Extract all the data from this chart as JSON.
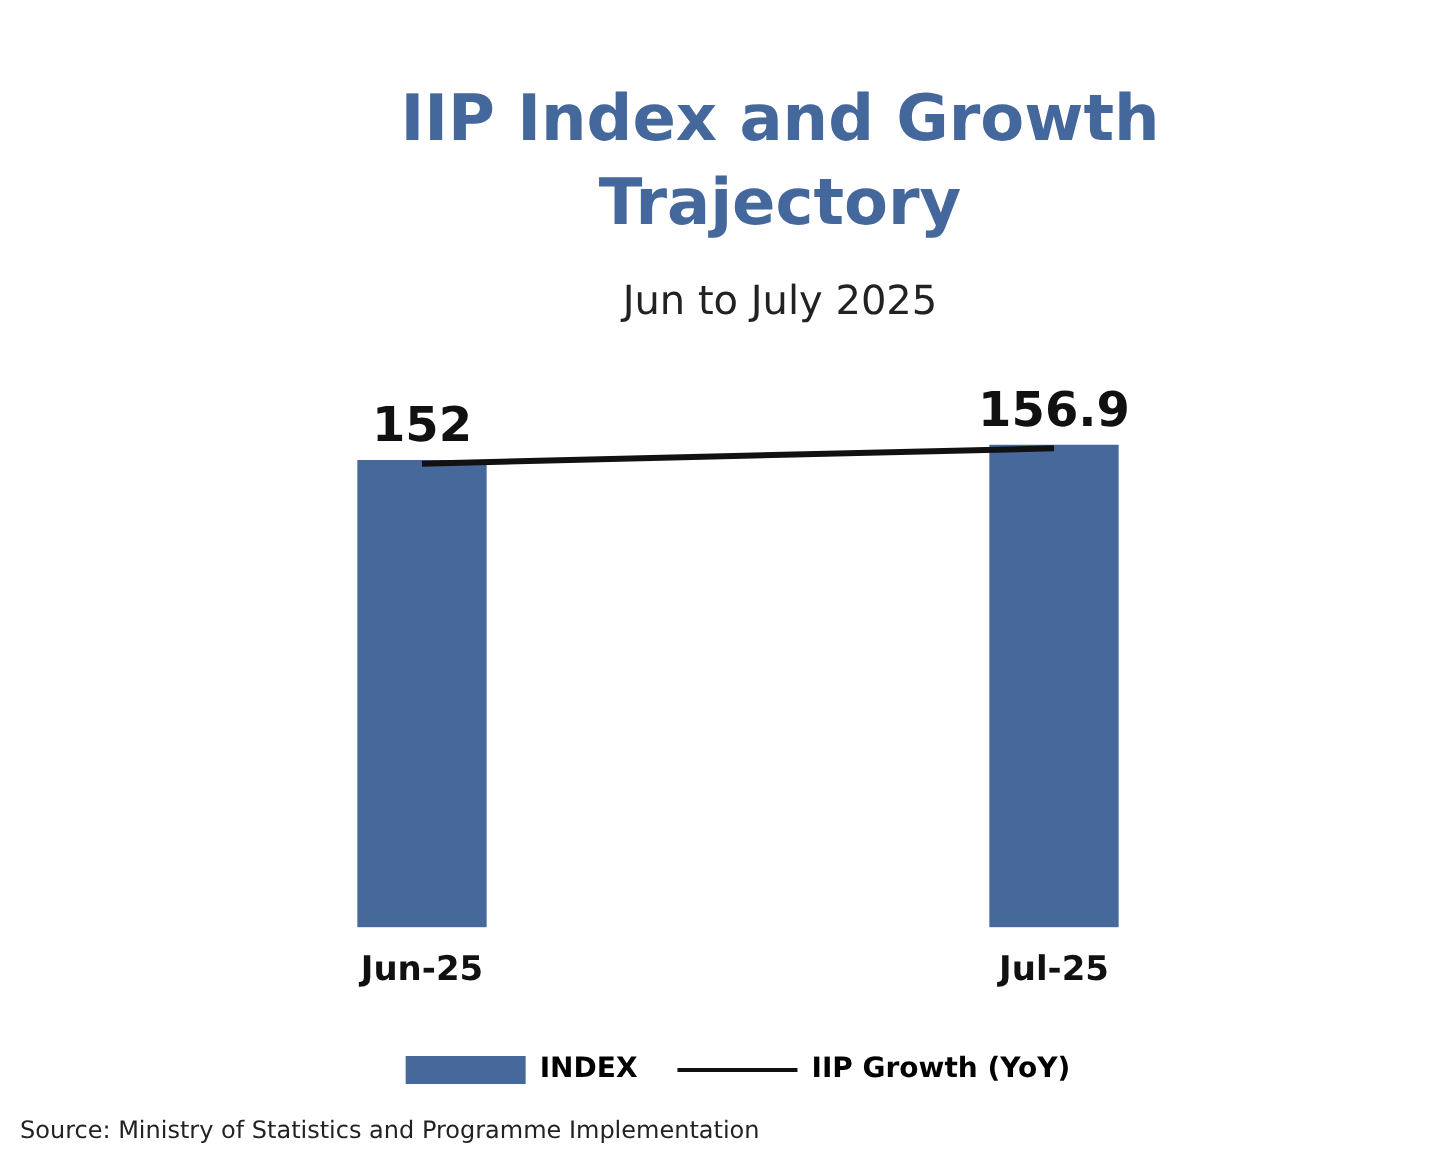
{
  "chart_data": {
    "type": "bar",
    "title": "IIP Index and Growth Trajectory",
    "subtitle": "Jun to July 2025",
    "categories": [
      "Jun-25",
      "Jul-25"
    ],
    "series": [
      {
        "name": "INDEX",
        "color": "#46689b",
        "values": [
          152,
          156.9
        ],
        "value_labels": [
          "152",
          "156.9"
        ]
      },
      {
        "name": "IIP Growth (YoY)",
        "type": "line",
        "color": "#111111",
        "values": [
          151,
          156
        ]
      }
    ],
    "tick_labels": "x",
    "grid": false,
    "legend": "bottom",
    "marker": "none",
    "annotations": [
      "Source: Ministry of Statistics and Programme Implementation"
    ]
  }
}
